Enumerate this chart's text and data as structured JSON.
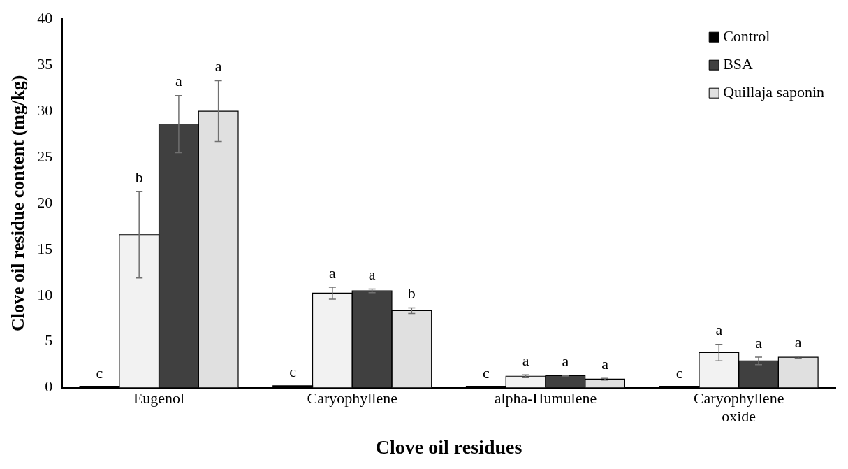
{
  "chart_data": {
    "type": "bar",
    "xlabel": "Clove oil residues",
    "ylabel": "Clove oil residue content (mg/kg)",
    "categories": [
      "Eugenol",
      "Caryophyllene",
      "alpha-Humulene",
      "Caryophyllene oxide"
    ],
    "ylim": [
      0,
      40
    ],
    "yticks": [
      0,
      5,
      10,
      15,
      20,
      25,
      30,
      35,
      40
    ],
    "grid": false,
    "legend": "top right",
    "series": [
      {
        "name": "Control",
        "color": "#000000",
        "values": [
          0,
          0.2,
          0,
          0
        ],
        "value_labels": [
          "c",
          "c",
          "c",
          "c"
        ]
      },
      {
        "color": "#f2f2f2",
        "values": [
          16.6,
          10.25,
          1.24,
          3.8
        ],
        "errors": [
          4.7,
          0.65,
          0.15,
          0.9
        ],
        "value_labels": [
          "b",
          "a",
          "a",
          "a"
        ]
      },
      {
        "name": "BSA",
        "color": "#404040",
        "values": [
          28.6,
          10.5,
          1.3,
          2.9
        ],
        "errors": [
          3.1,
          0.2,
          0.05,
          0.4
        ],
        "value_labels": [
          "a",
          "a",
          "a",
          "a"
        ]
      },
      {
        "name": "Quillaja saponin",
        "color": "#e0e0e0",
        "values": [
          30.0,
          8.35,
          0.92,
          3.3
        ],
        "errors": [
          3.3,
          0.3,
          0.1,
          0.1
        ],
        "value_labels": [
          "a",
          "b",
          "a",
          "a"
        ]
      }
    ]
  }
}
